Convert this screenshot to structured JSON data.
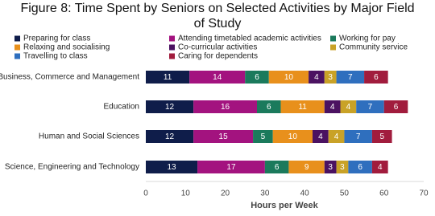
{
  "chart_data": {
    "type": "stacked-bar-horizontal",
    "title": [
      "Figure 8: Time Spent by Seniors on Selected Activities by Major Field",
      "of Study"
    ],
    "x_label": "Hours per Week",
    "categories": [
      "Business, Commerce and Management",
      "Education",
      "Human and Social Sciences",
      "Science, Engineering and Technology"
    ],
    "series": [
      {
        "name": "Preparing for class",
        "color": "#0f1d4a",
        "values": [
          11,
          12,
          12,
          13
        ]
      },
      {
        "name": "Attending timetabled academic activities",
        "color": "#a3137f",
        "values": [
          14,
          16,
          15,
          17
        ]
      },
      {
        "name": "Working for pay",
        "color": "#1b7a5c",
        "values": [
          6,
          6,
          5,
          6
        ]
      },
      {
        "name": "Relaxing and socialising",
        "color": "#e8901c",
        "values": [
          10,
          11,
          10,
          9
        ]
      },
      {
        "name": "Co-curricular activities",
        "color": "#4b1261",
        "values": [
          4,
          4,
          4,
          3
        ]
      },
      {
        "name": "Community service",
        "color": "#c9a227",
        "values": [
          3,
          4,
          4,
          3
        ]
      },
      {
        "name": "Travelling to class",
        "color": "#2f6fbe",
        "values": [
          7,
          7,
          7,
          6
        ]
      },
      {
        "name": "Caring for dependents",
        "color": "#a11c3d",
        "values": [
          6,
          6,
          5,
          4
        ]
      }
    ],
    "xlim": [
      0,
      70
    ],
    "xticks": [
      0,
      10,
      20,
      30,
      40,
      50,
      60,
      70
    ]
  }
}
